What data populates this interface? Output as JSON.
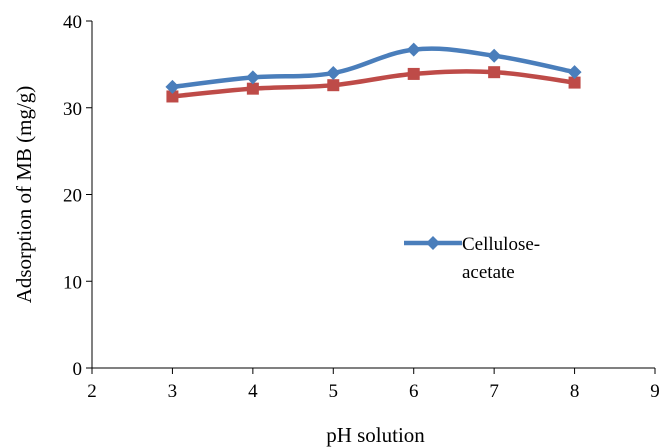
{
  "chart_data": {
    "type": "line",
    "title": "",
    "xlabel": "pH solution",
    "ylabel": "Adsorption of MB (mg/g)",
    "xlim": [
      2,
      9
    ],
    "ylim": [
      0,
      40
    ],
    "xticks": [
      2,
      3,
      4,
      5,
      6,
      7,
      8,
      9
    ],
    "yticks": [
      0,
      10,
      20,
      30,
      40
    ],
    "grid": false,
    "legend": {
      "placement": "center-right",
      "entries": [
        {
          "label_lines": [
            "Cellulose-",
            "acetate"
          ],
          "series": 0
        }
      ]
    },
    "series": [
      {
        "name": "Cellulose-acetate",
        "color": "#4a7ebb",
        "marker": "diamond",
        "smooth": true,
        "x": [
          3,
          4,
          5,
          6,
          7,
          8
        ],
        "y": [
          32.4,
          33.5,
          34.0,
          36.7,
          36.0,
          34.1
        ]
      },
      {
        "color": "#be4b48",
        "marker": "square",
        "smooth": true,
        "x": [
          3,
          4,
          5,
          6,
          7,
          8
        ],
        "y": [
          31.3,
          32.2,
          32.6,
          33.9,
          34.1,
          32.9
        ]
      }
    ]
  }
}
